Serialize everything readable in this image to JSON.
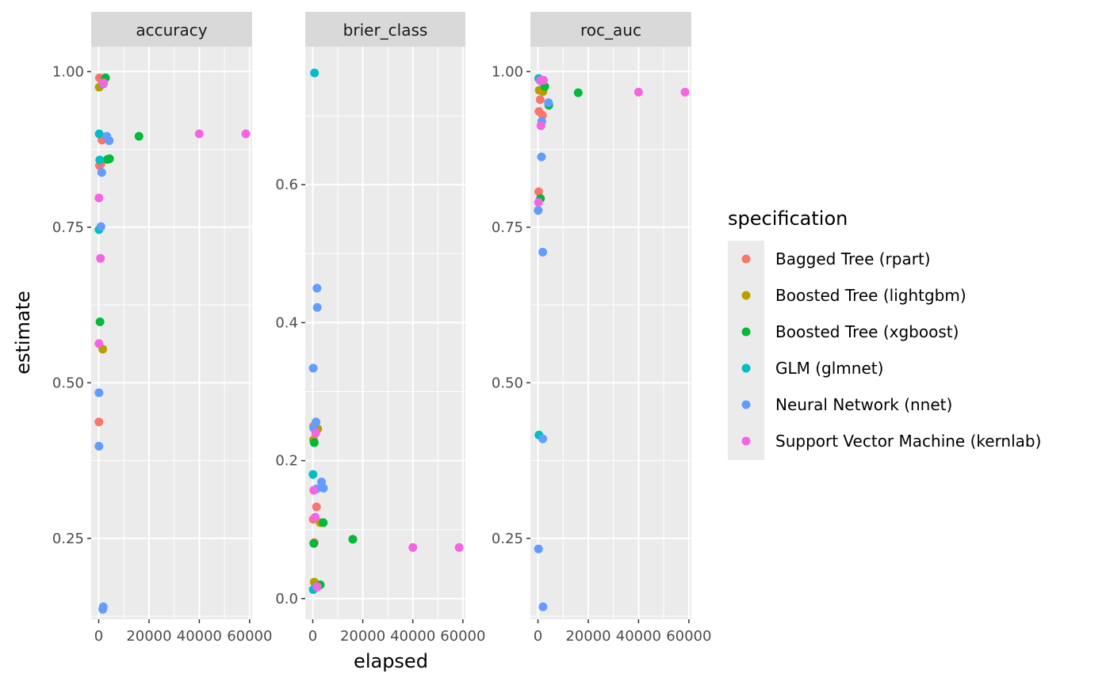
{
  "chart_data": {
    "type": "scatter",
    "title": "",
    "xlabel": "elapsed",
    "ylabel": "estimate",
    "grid": true,
    "legend_position": "right",
    "legend_title": "specification",
    "x_ticks": [
      0,
      20000,
      40000,
      60000
    ],
    "x_tick_labels": [
      "0",
      "20000",
      "40000",
      "60000"
    ],
    "xlim": [
      -3000,
      61000
    ],
    "series": [
      {
        "name": "Bagged Tree (rpart)",
        "color": "#F8766D"
      },
      {
        "name": "Boosted Tree (lightgbm)",
        "color": "#B79F00"
      },
      {
        "name": "Boosted Tree (xgboost)",
        "color": "#00BA38"
      },
      {
        "name": "GLM (glmnet)",
        "color": "#00BFC4"
      },
      {
        "name": "Neural Network (nnet)",
        "color": "#619CFF"
      },
      {
        "name": "Support Vector Machine (kernlab)",
        "color": "#F564E3"
      }
    ],
    "facets": [
      {
        "name": "accuracy",
        "ylim": [
          0.12,
          1.04
        ],
        "y_ticks": [
          0.25,
          0.5,
          0.75,
          1.0
        ],
        "y_tick_labels": [
          "0.25",
          "0.50",
          "0.75",
          "1.00"
        ],
        "points": [
          {
            "s": 0,
            "x": 300,
            "y": 0.99
          },
          {
            "s": 0,
            "x": 800,
            "y": 0.988
          },
          {
            "s": 0,
            "x": 1300,
            "y": 0.89
          },
          {
            "s": 0,
            "x": 300,
            "y": 0.849
          },
          {
            "s": 0,
            "x": 900,
            "y": 0.852
          },
          {
            "s": 0,
            "x": 100,
            "y": 0.437
          },
          {
            "s": 1,
            "x": 200,
            "y": 0.975
          },
          {
            "s": 1,
            "x": 1600,
            "y": 0.554
          },
          {
            "s": 2,
            "x": 2700,
            "y": 0.99
          },
          {
            "s": 2,
            "x": 3500,
            "y": 0.859
          },
          {
            "s": 2,
            "x": 4300,
            "y": 0.86
          },
          {
            "s": 2,
            "x": 16000,
            "y": 0.896
          },
          {
            "s": 2,
            "x": 500,
            "y": 0.598
          },
          {
            "s": 3,
            "x": 200,
            "y": 0.9
          },
          {
            "s": 3,
            "x": 400,
            "y": 0.858
          },
          {
            "s": 3,
            "x": 100,
            "y": 0.746
          },
          {
            "s": 4,
            "x": 1800,
            "y": 0.98
          },
          {
            "s": 4,
            "x": 3200,
            "y": 0.896
          },
          {
            "s": 4,
            "x": 4200,
            "y": 0.889
          },
          {
            "s": 4,
            "x": 1200,
            "y": 0.838
          },
          {
            "s": 4,
            "x": 900,
            "y": 0.751
          },
          {
            "s": 4,
            "x": 100,
            "y": 0.484
          },
          {
            "s": 4,
            "x": 100,
            "y": 0.398
          },
          {
            "s": 4,
            "x": 1800,
            "y": 0.14
          },
          {
            "s": 4,
            "x": 1600,
            "y": 0.136
          },
          {
            "s": 5,
            "x": 2000,
            "y": 0.982
          },
          {
            "s": 5,
            "x": 40000,
            "y": 0.9
          },
          {
            "s": 5,
            "x": 58500,
            "y": 0.9
          },
          {
            "s": 5,
            "x": 100,
            "y": 0.797
          },
          {
            "s": 5,
            "x": 700,
            "y": 0.7
          },
          {
            "s": 5,
            "x": 100,
            "y": 0.563
          }
        ]
      },
      {
        "name": "brier_class",
        "ylim": [
          -0.03,
          0.8
        ],
        "y_ticks": [
          0.0,
          0.2,
          0.4,
          0.6
        ],
        "y_tick_labels": [
          "0.0",
          "0.2",
          "0.4",
          "0.6"
        ],
        "points": [
          {
            "s": 0,
            "x": 200,
            "y": 0.115
          },
          {
            "s": 0,
            "x": 1500,
            "y": 0.133
          },
          {
            "s": 0,
            "x": 600,
            "y": 0.081
          },
          {
            "s": 0,
            "x": 300,
            "y": 0.25
          },
          {
            "s": 1,
            "x": 300,
            "y": 0.23
          },
          {
            "s": 1,
            "x": 2000,
            "y": 0.246
          },
          {
            "s": 1,
            "x": 3000,
            "y": 0.11
          },
          {
            "s": 1,
            "x": 600,
            "y": 0.024
          },
          {
            "s": 2,
            "x": 600,
            "y": 0.226
          },
          {
            "s": 2,
            "x": 4200,
            "y": 0.11
          },
          {
            "s": 2,
            "x": 16000,
            "y": 0.086
          },
          {
            "s": 2,
            "x": 3000,
            "y": 0.02
          },
          {
            "s": 2,
            "x": 400,
            "y": 0.08
          },
          {
            "s": 3,
            "x": 700,
            "y": 0.762
          },
          {
            "s": 3,
            "x": 100,
            "y": 0.18
          },
          {
            "s": 3,
            "x": 200,
            "y": 0.013
          },
          {
            "s": 4,
            "x": 1700,
            "y": 0.45
          },
          {
            "s": 4,
            "x": 1800,
            "y": 0.422
          },
          {
            "s": 4,
            "x": 200,
            "y": 0.334
          },
          {
            "s": 4,
            "x": 1300,
            "y": 0.256
          },
          {
            "s": 4,
            "x": 400,
            "y": 0.247
          },
          {
            "s": 4,
            "x": 3500,
            "y": 0.169
          },
          {
            "s": 4,
            "x": 4300,
            "y": 0.16
          },
          {
            "s": 4,
            "x": 1500,
            "y": 0.159
          },
          {
            "s": 4,
            "x": 1400,
            "y": 0.017
          },
          {
            "s": 5,
            "x": 1200,
            "y": 0.24
          },
          {
            "s": 5,
            "x": 400,
            "y": 0.157
          },
          {
            "s": 5,
            "x": 1000,
            "y": 0.118
          },
          {
            "s": 5,
            "x": 1800,
            "y": 0.017
          },
          {
            "s": 5,
            "x": 40000,
            "y": 0.074
          },
          {
            "s": 5,
            "x": 58500,
            "y": 0.074
          }
        ]
      },
      {
        "name": "roc_auc",
        "ylim": [
          0.12,
          1.04
        ],
        "y_ticks": [
          0.25,
          0.5,
          0.75,
          1.0
        ],
        "y_tick_labels": [
          "0.25",
          "0.50",
          "0.75",
          "1.00"
        ],
        "points": [
          {
            "s": 0,
            "x": 400,
            "y": 0.936
          },
          {
            "s": 0,
            "x": 900,
            "y": 0.955
          },
          {
            "s": 0,
            "x": 300,
            "y": 0.807
          },
          {
            "s": 0,
            "x": 1800,
            "y": 0.93
          },
          {
            "s": 1,
            "x": 500,
            "y": 0.97
          },
          {
            "s": 1,
            "x": 2000,
            "y": 0.968
          },
          {
            "s": 2,
            "x": 2700,
            "y": 0.976
          },
          {
            "s": 2,
            "x": 4300,
            "y": 0.946
          },
          {
            "s": 2,
            "x": 16000,
            "y": 0.966
          },
          {
            "s": 2,
            "x": 1000,
            "y": 0.796
          },
          {
            "s": 3,
            "x": 300,
            "y": 0.989
          },
          {
            "s": 3,
            "x": 400,
            "y": 0.416
          },
          {
            "s": 4,
            "x": 1000,
            "y": 0.985
          },
          {
            "s": 4,
            "x": 4200,
            "y": 0.95
          },
          {
            "s": 4,
            "x": 1500,
            "y": 0.92
          },
          {
            "s": 4,
            "x": 1400,
            "y": 0.863
          },
          {
            "s": 4,
            "x": 100,
            "y": 0.777
          },
          {
            "s": 4,
            "x": 1900,
            "y": 0.71
          },
          {
            "s": 4,
            "x": 1900,
            "y": 0.41
          },
          {
            "s": 4,
            "x": 200,
            "y": 0.233
          },
          {
            "s": 4,
            "x": 2000,
            "y": 0.14
          },
          {
            "s": 5,
            "x": 1000,
            "y": 0.986
          },
          {
            "s": 5,
            "x": 2200,
            "y": 0.986
          },
          {
            "s": 5,
            "x": 1200,
            "y": 0.913
          },
          {
            "s": 5,
            "x": 200,
            "y": 0.79
          },
          {
            "s": 5,
            "x": 40000,
            "y": 0.967
          },
          {
            "s": 5,
            "x": 58500,
            "y": 0.967
          }
        ]
      }
    ]
  }
}
